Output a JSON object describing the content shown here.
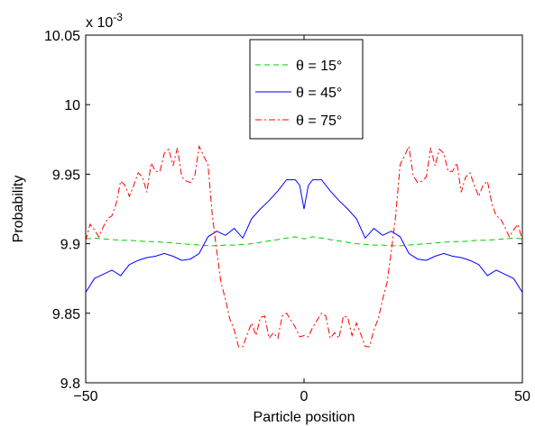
{
  "chart_data": {
    "type": "line",
    "xlabel": "Particle position",
    "ylabel": "Probability",
    "y_exponent_label": "x 10",
    "y_exponent_power": "-3",
    "xlim": [
      -50,
      50
    ],
    "ylim": [
      9.8,
      10.05
    ],
    "x_ticks": [
      -50,
      0,
      50
    ],
    "x_tick_labels": [
      "−50",
      "0",
      "50"
    ],
    "y_ticks": [
      9.8,
      9.85,
      9.9,
      9.95,
      10,
      10.05
    ],
    "y_tick_labels": [
      "9.8",
      "9.85",
      "9.9",
      "9.95",
      "10",
      "10.05"
    ],
    "grid": false,
    "legend_position": "top-center",
    "series": [
      {
        "name": "θ = 15°",
        "color": "#00cc00",
        "dash": "dashed",
        "x": [
          -50,
          -48,
          -46,
          -44,
          -42,
          -40,
          -38,
          -36,
          -34,
          -32,
          -30,
          -28,
          -26,
          -24,
          -22,
          -20,
          -18,
          -16,
          -14,
          -12,
          -10,
          -8,
          -6,
          -4,
          -2,
          0,
          2,
          4,
          6,
          8,
          10,
          12,
          14,
          16,
          18,
          20,
          22,
          24,
          26,
          28,
          30,
          32,
          34,
          36,
          38,
          40,
          42,
          44,
          46,
          48,
          50
        ],
        "values": [
          9.9035,
          9.904,
          9.9035,
          9.903,
          9.9025,
          9.9025,
          9.902,
          9.9015,
          9.9015,
          9.901,
          9.9005,
          9.9,
          9.8995,
          9.899,
          9.8985,
          9.8985,
          9.899,
          9.899,
          9.8995,
          9.9,
          9.901,
          9.902,
          9.903,
          9.904,
          9.905,
          9.9035,
          9.905,
          9.904,
          9.903,
          9.902,
          9.901,
          9.9,
          9.8995,
          9.899,
          9.899,
          9.8985,
          9.8985,
          9.899,
          9.8995,
          9.9,
          9.9005,
          9.901,
          9.9015,
          9.9015,
          9.902,
          9.9025,
          9.9025,
          9.903,
          9.9035,
          9.904,
          9.9035
        ]
      },
      {
        "name": "θ = 45°",
        "color": "#0000ff",
        "dash": "solid",
        "x": [
          -50,
          -48,
          -46,
          -44,
          -42,
          -40,
          -38,
          -36,
          -34,
          -32,
          -30,
          -28,
          -26,
          -24,
          -22,
          -20,
          -18,
          -16,
          -14,
          -12,
          -10,
          -8,
          -6,
          -4,
          -2,
          -1,
          0,
          1,
          2,
          4,
          6,
          8,
          10,
          12,
          14,
          16,
          18,
          20,
          22,
          24,
          26,
          28,
          30,
          32,
          34,
          36,
          38,
          40,
          42,
          44,
          46,
          48,
          50
        ],
        "values": [
          9.865,
          9.875,
          9.878,
          9.881,
          9.877,
          9.885,
          9.888,
          9.89,
          9.891,
          9.893,
          9.891,
          9.888,
          9.889,
          9.893,
          9.905,
          9.909,
          9.906,
          9.911,
          9.904,
          9.918,
          9.925,
          9.931,
          9.938,
          9.946,
          9.946,
          9.942,
          9.925,
          9.942,
          9.946,
          9.946,
          9.938,
          9.931,
          9.925,
          9.918,
          9.904,
          9.911,
          9.906,
          9.909,
          9.905,
          9.893,
          9.889,
          9.888,
          9.891,
          9.893,
          9.891,
          9.89,
          9.888,
          9.885,
          9.877,
          9.881,
          9.878,
          9.875,
          9.865
        ]
      },
      {
        "name": "θ = 75°",
        "color": "#ff0000",
        "dash": "dash-dot",
        "x": [
          -50,
          -49,
          -48,
          -47,
          -46,
          -45,
          -44,
          -43,
          -42,
          -41,
          -40,
          -39,
          -38,
          -37,
          -36,
          -35,
          -34,
          -33,
          -32,
          -31,
          -30,
          -29,
          -28,
          -27,
          -26,
          -25,
          -24,
          -23,
          -22,
          -21,
          -20,
          -19,
          -18,
          -17,
          -16,
          -15,
          -14,
          -13,
          -12,
          -11,
          -10,
          -9,
          -8,
          -7,
          -6,
          -5,
          -4,
          -3,
          -2,
          -1,
          0,
          1,
          2,
          3,
          4,
          5,
          6,
          7,
          8,
          9,
          10,
          11,
          12,
          13,
          14,
          15,
          16,
          17,
          18,
          19,
          20,
          21,
          22,
          23,
          24,
          25,
          26,
          27,
          28,
          29,
          30,
          31,
          32,
          33,
          34,
          35,
          36,
          37,
          38,
          39,
          40,
          41,
          42,
          43,
          44,
          45,
          46,
          47,
          48,
          49,
          50
        ],
        "values": [
          9.902,
          9.914,
          9.91,
          9.905,
          9.912,
          9.918,
          9.92,
          9.929,
          9.945,
          9.942,
          9.934,
          9.942,
          9.951,
          9.948,
          9.937,
          9.958,
          9.952,
          9.952,
          9.965,
          9.968,
          9.956,
          9.969,
          9.948,
          9.945,
          9.944,
          9.949,
          9.97,
          9.963,
          9.957,
          9.92,
          9.895,
          9.872,
          9.86,
          9.846,
          9.838,
          9.826,
          9.826,
          9.835,
          9.843,
          9.834,
          9.847,
          9.848,
          9.832,
          9.836,
          9.832,
          9.848,
          9.85,
          9.845,
          9.84,
          9.833,
          9.834,
          9.833,
          9.84,
          9.845,
          9.85,
          9.848,
          9.832,
          9.836,
          9.832,
          9.848,
          9.847,
          9.834,
          9.843,
          9.835,
          9.826,
          9.826,
          9.838,
          9.846,
          9.86,
          9.872,
          9.895,
          9.92,
          9.957,
          9.963,
          9.97,
          9.949,
          9.944,
          9.945,
          9.948,
          9.969,
          9.956,
          9.968,
          9.965,
          9.952,
          9.952,
          9.958,
          9.937,
          9.948,
          9.951,
          9.942,
          9.934,
          9.942,
          9.945,
          9.929,
          9.92,
          9.918,
          9.912,
          9.905,
          9.91,
          9.914,
          9.902
        ]
      }
    ]
  }
}
